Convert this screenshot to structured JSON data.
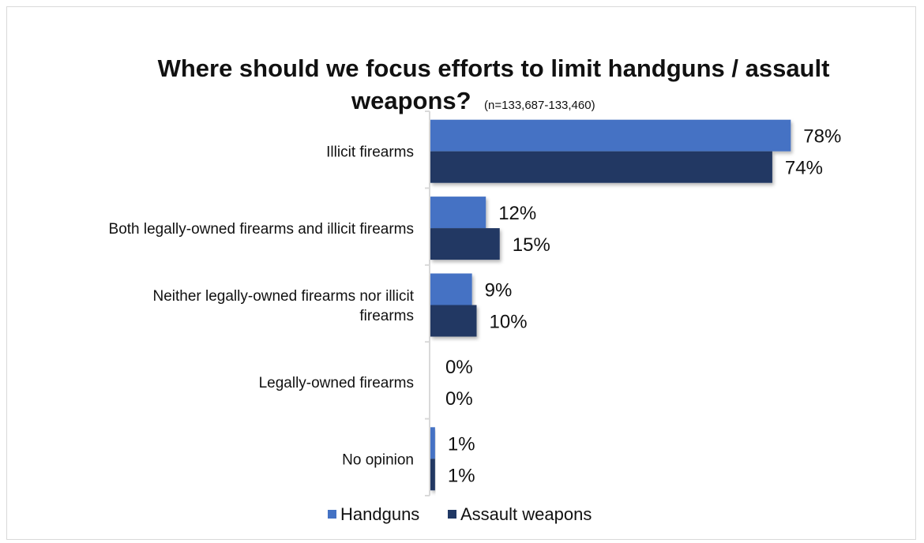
{
  "colors": {
    "handguns": "#4472C4",
    "assault_weapons": "#203864",
    "axis": "#d9d9d9",
    "text": "#111111"
  },
  "chart_data": {
    "type": "bar",
    "orientation": "horizontal",
    "title": "Where should we focus efforts to limit handguns / assault weapons?",
    "title_line1": "Where should we focus efforts to limit handguns / assault",
    "title_line2": "weapons?",
    "subtitle": "(n=133,687-133,460)",
    "categories": [
      "Illicit firearms",
      "Both legally-owned firearms and illicit firearms",
      "Neither legally-owned firearms nor illicit firearms",
      "Legally-owned firearms",
      "No opinion"
    ],
    "category_lines": [
      [
        "Illicit firearms"
      ],
      [
        "Both legally-owned firearms and illicit firearms"
      ],
      [
        "Neither legally-owned firearms nor illicit",
        "firearms"
      ],
      [
        "Legally-owned firearms"
      ],
      [
        "No opinion"
      ]
    ],
    "series": [
      {
        "name": "Handguns",
        "values": [
          78,
          12,
          9,
          0,
          1
        ],
        "labels": [
          "78%",
          "12%",
          "9%",
          "0%",
          "1%"
        ]
      },
      {
        "name": "Assault weapons",
        "values": [
          74,
          15,
          10,
          0,
          1
        ],
        "labels": [
          "74%",
          "15%",
          "10%",
          "0%",
          "1%"
        ]
      }
    ],
    "xlim": [
      0,
      100
    ],
    "unit": "%",
    "grid": false,
    "legend_position": "bottom"
  }
}
